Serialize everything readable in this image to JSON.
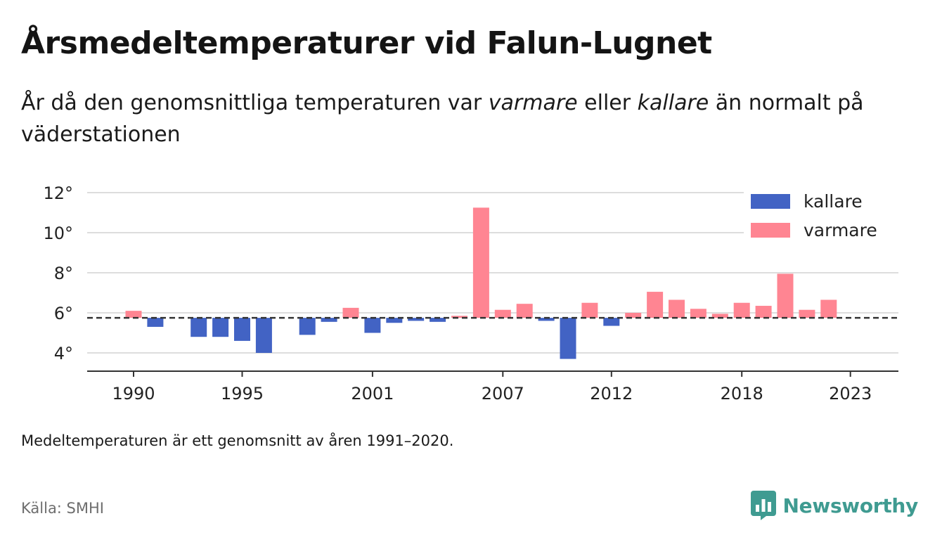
{
  "header": {
    "title": "Årsmedeltemperaturer vid Falun-Lugnet",
    "subtitle_pre": "År då den genomsnittliga temperaturen var ",
    "subtitle_warm": "varmare",
    "subtitle_mid": " eller ",
    "subtitle_cold": "kallare",
    "subtitle_post": " än normalt på väderstationen"
  },
  "footer": {
    "note": "Medeltemperaturen är ett genomsnitt av åren 1991–2020.",
    "source": "Källa: SMHI",
    "brand": "Newsworthy"
  },
  "colors": {
    "cold": "#4263c4",
    "warm": "#ff8592",
    "grid": "#dddddd",
    "axis": "#333333",
    "reference_line": "#333333",
    "brand": "#3f9b91"
  },
  "chart_data": {
    "type": "bar",
    "title": "Årsmedeltemperaturer vid Falun-Lugnet",
    "reference_value": 5.75,
    "ylim": [
      3.1,
      12.4
    ],
    "yticks": [
      4,
      6,
      8,
      10,
      12
    ],
    "ytick_labels": [
      "4°",
      "6°",
      "8°",
      "10°",
      "12°"
    ],
    "xlim": [
      1989,
      2025
    ],
    "xticks": [
      1990,
      1995,
      2001,
      2007,
      2012,
      2018,
      2023
    ],
    "grid": true,
    "legend_position": "top-right",
    "series": [
      {
        "name": "kallare",
        "color": "#4263c4"
      },
      {
        "name": "varmare",
        "color": "#ff8592"
      }
    ],
    "years": [
      1990,
      1991,
      1992,
      1993,
      1994,
      1995,
      1996,
      1997,
      1998,
      1999,
      2000,
      2001,
      2002,
      2003,
      2004,
      2005,
      2006,
      2007,
      2008,
      2009,
      2010,
      2011,
      2012,
      2013,
      2014,
      2015,
      2016,
      2017,
      2018,
      2019,
      2020,
      2021,
      2022
    ],
    "values": [
      6.1,
      5.3,
      null,
      4.8,
      4.8,
      4.6,
      4.0,
      null,
      4.9,
      5.55,
      6.25,
      5.0,
      5.5,
      5.6,
      5.55,
      5.85,
      11.25,
      6.15,
      6.45,
      5.6,
      3.7,
      6.5,
      5.35,
      6.0,
      7.05,
      6.65,
      6.2,
      5.95,
      6.5,
      6.35,
      7.95,
      6.15,
      6.65
    ]
  }
}
